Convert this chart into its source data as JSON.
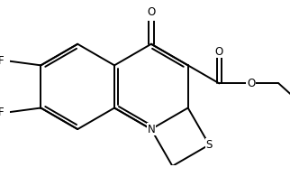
{
  "bg_color": "#ffffff",
  "line_color": "#000000",
  "line_width": 1.4,
  "font_size": 8.5,
  "figsize": [
    3.22,
    2.06
  ],
  "dpi": 100,
  "xlim": [
    -2.8,
    3.8
  ],
  "ylim": [
    -1.6,
    1.8
  ]
}
